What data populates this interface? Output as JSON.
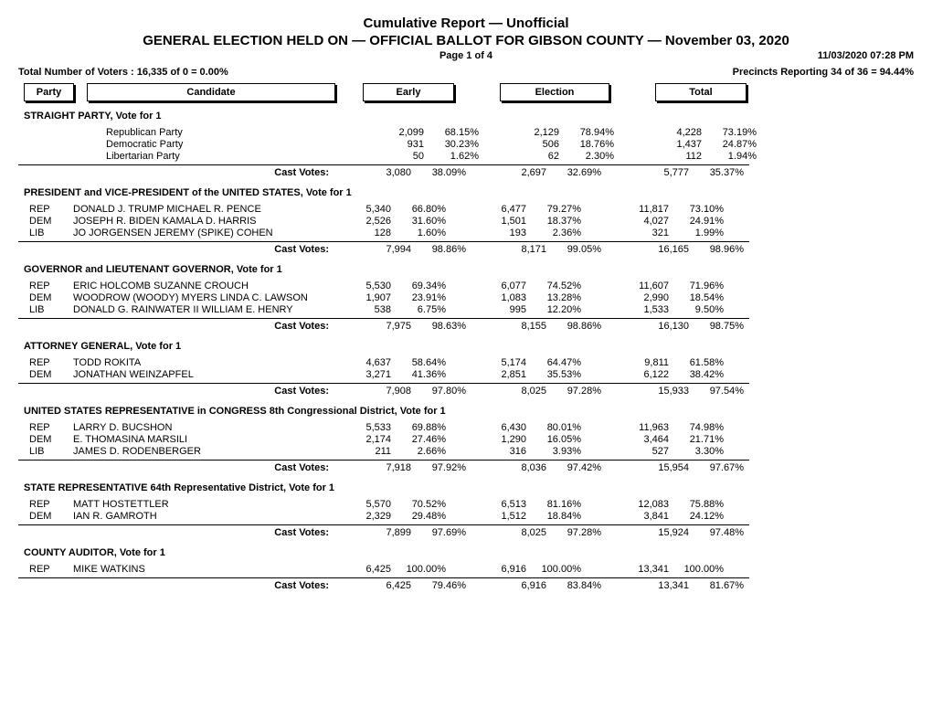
{
  "header": {
    "title1": "Cumulative Report  —  Unofficial",
    "title2": "GENERAL ELECTION HELD ON  —  OFFICIAL BALLOT FOR GIBSON COUNTY  —  November 03, 2020",
    "page": "Page 1 of 4",
    "timestamp": "11/03/2020 07:28 PM",
    "voters": "Total Number of Voters : 16,335 of 0 = 0.00%",
    "precincts": "Precincts Reporting 34 of 36 = 94.44%"
  },
  "columns": {
    "party": "Party",
    "candidate": "Candidate",
    "early": "Early",
    "election": "Election",
    "total": "Total"
  },
  "cast_label": "Cast Votes:",
  "sections": [
    {
      "title": "STRAIGHT PARTY, Vote for 1",
      "rows": [
        {
          "party": "",
          "cand": "Republican Party",
          "e_n": "2,099",
          "e_p": "68.15%",
          "el_n": "2,129",
          "el_p": "78.94%",
          "t_n": "4,228",
          "t_p": "73.19%"
        },
        {
          "party": "",
          "cand": "Democratic Party",
          "e_n": "931",
          "e_p": "30.23%",
          "el_n": "506",
          "el_p": "18.76%",
          "t_n": "1,437",
          "t_p": "24.87%"
        },
        {
          "party": "",
          "cand": "Libertarian Party",
          "e_n": "50",
          "e_p": "1.62%",
          "el_n": "62",
          "el_p": "2.30%",
          "t_n": "112",
          "t_p": "1.94%"
        }
      ],
      "cast": {
        "e_n": "3,080",
        "e_p": "38.09%",
        "el_n": "2,697",
        "el_p": "32.69%",
        "t_n": "5,777",
        "t_p": "35.37%"
      }
    },
    {
      "title": "PRESIDENT and VICE-PRESIDENT of the UNITED STATES, Vote for 1",
      "rows": [
        {
          "party": "REP",
          "cand": "DONALD J. TRUMP MICHAEL R. PENCE",
          "e_n": "5,340",
          "e_p": "66.80%",
          "el_n": "6,477",
          "el_p": "79.27%",
          "t_n": "11,817",
          "t_p": "73.10%"
        },
        {
          "party": "DEM",
          "cand": "JOSEPH R. BIDEN KAMALA D. HARRIS",
          "e_n": "2,526",
          "e_p": "31.60%",
          "el_n": "1,501",
          "el_p": "18.37%",
          "t_n": "4,027",
          "t_p": "24.91%"
        },
        {
          "party": "LIB",
          "cand": "JO JORGENSEN JEREMY (SPIKE) COHEN",
          "e_n": "128",
          "e_p": "1.60%",
          "el_n": "193",
          "el_p": "2.36%",
          "t_n": "321",
          "t_p": "1.99%"
        }
      ],
      "cast": {
        "e_n": "7,994",
        "e_p": "98.86%",
        "el_n": "8,171",
        "el_p": "99.05%",
        "t_n": "16,165",
        "t_p": "98.96%"
      }
    },
    {
      "title": "GOVERNOR and LIEUTENANT GOVERNOR, Vote for 1",
      "rows": [
        {
          "party": "REP",
          "cand": "ERIC HOLCOMB SUZANNE CROUCH",
          "e_n": "5,530",
          "e_p": "69.34%",
          "el_n": "6,077",
          "el_p": "74.52%",
          "t_n": "11,607",
          "t_p": "71.96%"
        },
        {
          "party": "DEM",
          "cand": "WOODROW (WOODY) MYERS LINDA C. LAWSON",
          "e_n": "1,907",
          "e_p": "23.91%",
          "el_n": "1,083",
          "el_p": "13.28%",
          "t_n": "2,990",
          "t_p": "18.54%"
        },
        {
          "party": "LIB",
          "cand": "DONALD G. RAINWATER II WILLIAM E. HENRY",
          "e_n": "538",
          "e_p": "6.75%",
          "el_n": "995",
          "el_p": "12.20%",
          "t_n": "1,533",
          "t_p": "9.50%"
        }
      ],
      "cast": {
        "e_n": "7,975",
        "e_p": "98.63%",
        "el_n": "8,155",
        "el_p": "98.86%",
        "t_n": "16,130",
        "t_p": "98.75%"
      }
    },
    {
      "title": "ATTORNEY GENERAL, Vote for 1",
      "rows": [
        {
          "party": "REP",
          "cand": "TODD ROKITA",
          "e_n": "4,637",
          "e_p": "58.64%",
          "el_n": "5,174",
          "el_p": "64.47%",
          "t_n": "9,811",
          "t_p": "61.58%"
        },
        {
          "party": "DEM",
          "cand": "JONATHAN WEINZAPFEL",
          "e_n": "3,271",
          "e_p": "41.36%",
          "el_n": "2,851",
          "el_p": "35.53%",
          "t_n": "6,122",
          "t_p": "38.42%"
        }
      ],
      "cast": {
        "e_n": "7,908",
        "e_p": "97.80%",
        "el_n": "8,025",
        "el_p": "97.28%",
        "t_n": "15,933",
        "t_p": "97.54%"
      }
    },
    {
      "title": "UNITED STATES REPRESENTATIVE in CONGRESS 8th Congressional District, Vote for 1",
      "rows": [
        {
          "party": "REP",
          "cand": "LARRY D. BUCSHON",
          "e_n": "5,533",
          "e_p": "69.88%",
          "el_n": "6,430",
          "el_p": "80.01%",
          "t_n": "11,963",
          "t_p": "74.98%"
        },
        {
          "party": "DEM",
          "cand": "E. THOMASINA MARSILI",
          "e_n": "2,174",
          "e_p": "27.46%",
          "el_n": "1,290",
          "el_p": "16.05%",
          "t_n": "3,464",
          "t_p": "21.71%"
        },
        {
          "party": "LIB",
          "cand": "JAMES D. RODENBERGER",
          "e_n": "211",
          "e_p": "2.66%",
          "el_n": "316",
          "el_p": "3.93%",
          "t_n": "527",
          "t_p": "3.30%"
        }
      ],
      "cast": {
        "e_n": "7,918",
        "e_p": "97.92%",
        "el_n": "8,036",
        "el_p": "97.42%",
        "t_n": "15,954",
        "t_p": "97.67%"
      }
    },
    {
      "title": "STATE REPRESENTATIVE 64th Representative District, Vote for 1",
      "rows": [
        {
          "party": "REP",
          "cand": "MATT HOSTETTLER",
          "e_n": "5,570",
          "e_p": "70.52%",
          "el_n": "6,513",
          "el_p": "81.16%",
          "t_n": "12,083",
          "t_p": "75.88%"
        },
        {
          "party": "DEM",
          "cand": "IAN R. GAMROTH",
          "e_n": "2,329",
          "e_p": "29.48%",
          "el_n": "1,512",
          "el_p": "18.84%",
          "t_n": "3,841",
          "t_p": "24.12%"
        }
      ],
      "cast": {
        "e_n": "7,899",
        "e_p": "97.69%",
        "el_n": "8,025",
        "el_p": "97.28%",
        "t_n": "15,924",
        "t_p": "97.48%"
      }
    },
    {
      "title": "COUNTY AUDITOR, Vote for 1",
      "rows": [
        {
          "party": "REP",
          "cand": "MIKE WATKINS",
          "e_n": "6,425",
          "e_p": "100.00%",
          "el_n": "6,916",
          "el_p": "100.00%",
          "t_n": "13,341",
          "t_p": "100.00%"
        }
      ],
      "cast": {
        "e_n": "6,425",
        "e_p": "79.46%",
        "el_n": "6,916",
        "el_p": "83.84%",
        "t_n": "13,341",
        "t_p": "81.67%"
      }
    }
  ]
}
